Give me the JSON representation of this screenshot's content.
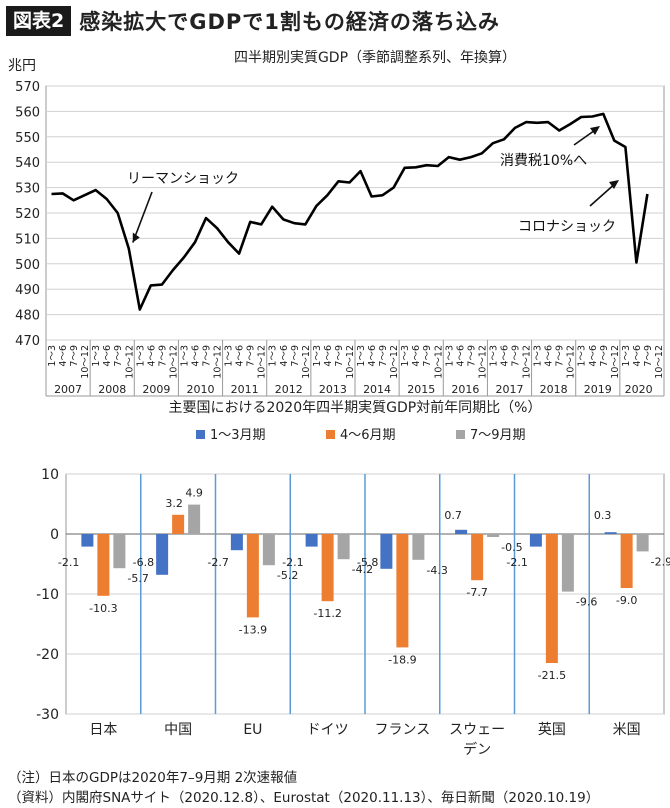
{
  "header": {
    "tag": "図表2",
    "title": "感染拡大でGDPで1割もの経済の落ち込み"
  },
  "chart_data": [
    {
      "type": "line",
      "title": "四半期別実質GDP（季節調整系列、年換算）",
      "ylabel": "兆円",
      "ylim": [
        470,
        570
      ],
      "yticks": [
        470,
        480,
        490,
        500,
        510,
        520,
        530,
        540,
        550,
        560,
        570
      ],
      "quarter_labels": [
        "1～3",
        "4～6",
        "7～9",
        "10～12"
      ],
      "years": [
        "2007",
        "2008",
        "2009",
        "2010",
        "2011",
        "2012",
        "2013",
        "2014",
        "2015",
        "2016",
        "2017",
        "2018",
        "2019",
        "2020"
      ],
      "last_year_quarters": 3,
      "values": [
        527.5,
        527.7,
        525.0,
        527.0,
        529.0,
        525.5,
        520.0,
        506.0,
        482.0,
        491.5,
        491.8,
        497.5,
        502.5,
        508.5,
        518.0,
        514.0,
        508.5,
        504.0,
        516.5,
        515.5,
        522.5,
        517.5,
        516.0,
        515.5,
        522.8,
        527.0,
        532.5,
        532.0,
        536.5,
        526.5,
        527.0,
        530.0,
        537.8,
        538.0,
        538.8,
        538.5,
        542.0,
        541.0,
        542.0,
        543.5,
        547.5,
        549.0,
        553.5,
        555.8,
        555.5,
        555.8,
        552.5,
        555.0,
        557.8,
        558.0,
        559.0,
        548.5,
        546.0,
        500.5,
        527.5
      ],
      "annotations": [
        {
          "text": "リーマンショック",
          "index": 7
        },
        {
          "text": "消費税10%へ",
          "index": 51
        },
        {
          "text": "コロナショック",
          "index": 52
        }
      ]
    },
    {
      "type": "bar",
      "title": "主要国における2020年四半期実質GDP対前年同期比（%）",
      "categories": [
        "日本",
        "中国",
        "EU",
        "ドイツ",
        "フランス",
        "スウェーデン",
        "英国",
        "米国"
      ],
      "series": [
        {
          "name": "1～3月期",
          "color": "#4472c4",
          "values": [
            -2.1,
            -6.8,
            -2.7,
            -2.1,
            -5.8,
            0.7,
            -2.1,
            0.3
          ]
        },
        {
          "name": "4～6月期",
          "color": "#ed7d31",
          "values": [
            -10.3,
            3.2,
            -13.9,
            -11.2,
            -18.9,
            -7.7,
            -21.5,
            -9.0
          ]
        },
        {
          "name": "7～9月期",
          "color": "#a5a5a5",
          "values": [
            -5.7,
            4.9,
            -5.2,
            -4.2,
            -4.3,
            -0.5,
            -9.6,
            -2.9
          ]
        }
      ],
      "ylim": [
        -30,
        10
      ],
      "yticks": [
        -30,
        -20,
        -10,
        0,
        10
      ]
    }
  ],
  "notes": [
    "（注）日本のGDPは2020年7–9月期 2次速報値",
    "（資料）内閣府SNAサイト（2020.12.8）、Eurostat（2020.11.13）、毎日新聞（2020.10.19）"
  ]
}
